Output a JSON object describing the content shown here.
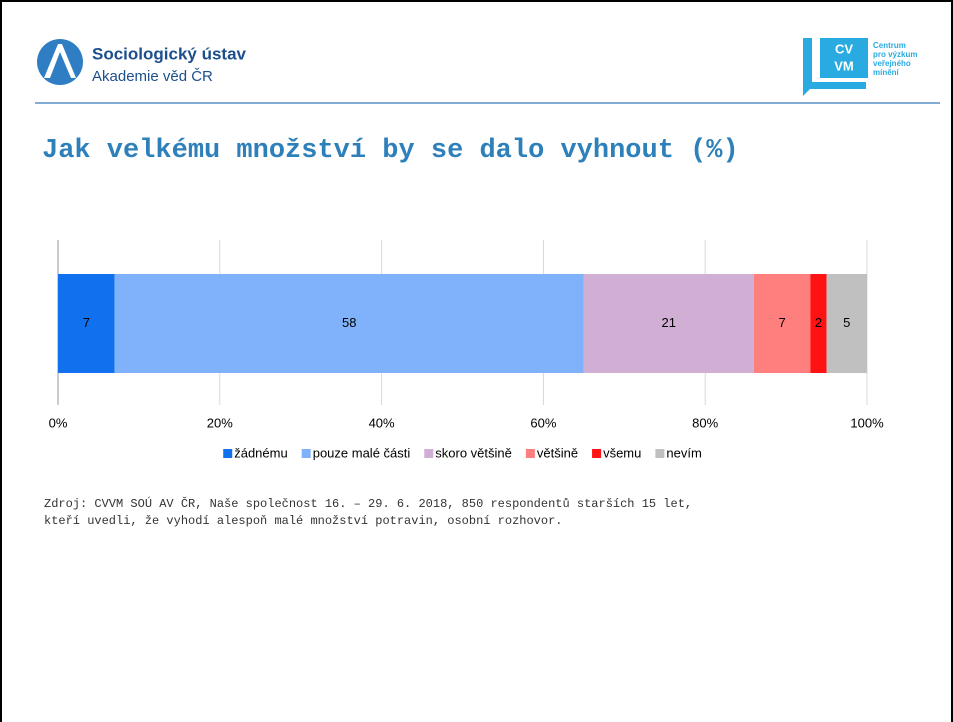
{
  "header": {
    "institute": "Sociologický ústav",
    "academy": "Akademie věd ČR",
    "logo_letters": [
      "CV",
      "VM"
    ],
    "center_lines": [
      "Centrum",
      "pro výzkum",
      "veřejného",
      "mínění"
    ]
  },
  "chart_data": {
    "type": "stacked_bar_horizontal",
    "title": "Jak velkému množství by se dalo vyhnout (%)",
    "series": [
      {
        "name": "žádnému",
        "color": "#1170ee",
        "values": [
          7
        ]
      },
      {
        "name": "pouze malé části",
        "color": "#80b1fb",
        "values": [
          58
        ]
      },
      {
        "name": "skoro většině",
        "color": "#d1afd4",
        "values": [
          21
        ]
      },
      {
        "name": "většině",
        "color": "#ff7f7f",
        "values": [
          7
        ]
      },
      {
        "name": "všemu",
        "color": "#ff1212",
        "values": [
          2
        ]
      },
      {
        "name": "nevím",
        "color": "#c0c0c0",
        "values": [
          5
        ]
      }
    ],
    "xlim": [
      0,
      100
    ],
    "xticks": [
      {
        "value": 0,
        "label": "0%"
      },
      {
        "value": 20,
        "label": "20%"
      },
      {
        "value": 40,
        "label": "40%"
      },
      {
        "value": 60,
        "label": "60%"
      },
      {
        "value": 80,
        "label": "80%"
      },
      {
        "value": 100,
        "label": "100%"
      }
    ],
    "grid": true,
    "legend": "bottom"
  },
  "source": [
    "Zdroj: CVVM SOÚ AV ČR, Naše společnost 16. – 29. 6. 2018, 850 respondentů starších 15 let,",
    "kteří uvedli, že vyhodí alespoň malé množství potravin, osobní rozhovor."
  ]
}
